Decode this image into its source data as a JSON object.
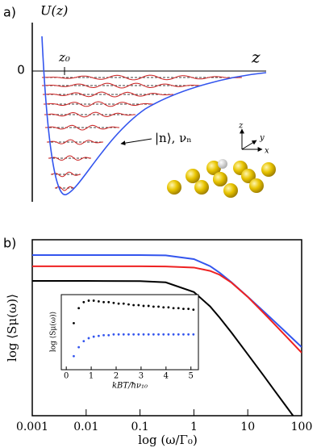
{
  "panel_a": {
    "label": "a)",
    "y_label": "U(z)",
    "zero_label": "0",
    "z0_label": "z₀",
    "x_label": "z",
    "state_label": "|n⟩, νₙ",
    "axes": [
      "x",
      "y",
      "z"
    ]
  },
  "chart_data": {
    "type": "line",
    "label": "b)",
    "x_label": "log (ω/Γ₀)",
    "y_label": "log ⟨Sμ(ω)⟩",
    "x": [
      0.001,
      0.01,
      0.1,
      0.3,
      1,
      2,
      3,
      5,
      10,
      20,
      30,
      50,
      100
    ],
    "series": [
      {
        "color": "#3355ee",
        "values": [
          9.13,
          9.13,
          9.13,
          9.11,
          8.9,
          8.5,
          8.13,
          7.58,
          6.76,
          5.91,
          5.41,
          4.77,
          3.9
        ]
      },
      {
        "color": "#ee2222",
        "values": [
          8.49,
          8.49,
          8.49,
          8.48,
          8.42,
          8.23,
          8.01,
          7.56,
          6.75,
          5.82,
          5.26,
          4.55,
          3.58
        ]
      },
      {
        "color": "#000000",
        "values": [
          7.66,
          7.66,
          7.65,
          7.58,
          7.03,
          6.21,
          5.58,
          4.72,
          3.49,
          2.25,
          1.51,
          0.59,
          -0.66
        ]
      }
    ],
    "log_x": true,
    "xlim": [
      0.001,
      100
    ],
    "xticks": [
      0.001,
      0.01,
      0.1,
      1,
      10,
      100
    ],
    "ylim": [
      0,
      10
    ],
    "inset": {
      "type": "scatter",
      "x_label": "kBT/ħν₁₀",
      "y_label": "log ⟨Sμ(ω)⟩",
      "x": [
        0.3,
        0.5,
        0.7,
        0.9,
        1.1,
        1.3,
        1.5,
        1.7,
        1.9,
        2.1,
        2.3,
        2.5,
        2.7,
        2.9,
        3.1,
        3.3,
        3.5,
        3.7,
        3.9,
        4.1,
        4.3,
        4.5,
        4.7,
        4.9,
        5.1
      ],
      "series": [
        {
          "color": "#000000",
          "values": [
            0.62,
            0.82,
            0.9,
            0.92,
            0.92,
            0.91,
            0.9,
            0.9,
            0.89,
            0.88,
            0.88,
            0.87,
            0.86,
            0.86,
            0.85,
            0.85,
            0.84,
            0.84,
            0.83,
            0.83,
            0.82,
            0.82,
            0.81,
            0.81,
            0.8
          ]
        },
        {
          "color": "#3355ee",
          "values": [
            0.18,
            0.3,
            0.38,
            0.42,
            0.44,
            0.45,
            0.46,
            0.46,
            0.47,
            0.47,
            0.47,
            0.47,
            0.47,
            0.47,
            0.47,
            0.47,
            0.47,
            0.47,
            0.47,
            0.47,
            0.47,
            0.47,
            0.47,
            0.47,
            0.47
          ]
        }
      ],
      "xlim": [
        -0.2,
        5.3
      ],
      "xticks": [
        0,
        1,
        2,
        3,
        4,
        5
      ],
      "ylim": [
        0,
        1
      ]
    }
  }
}
